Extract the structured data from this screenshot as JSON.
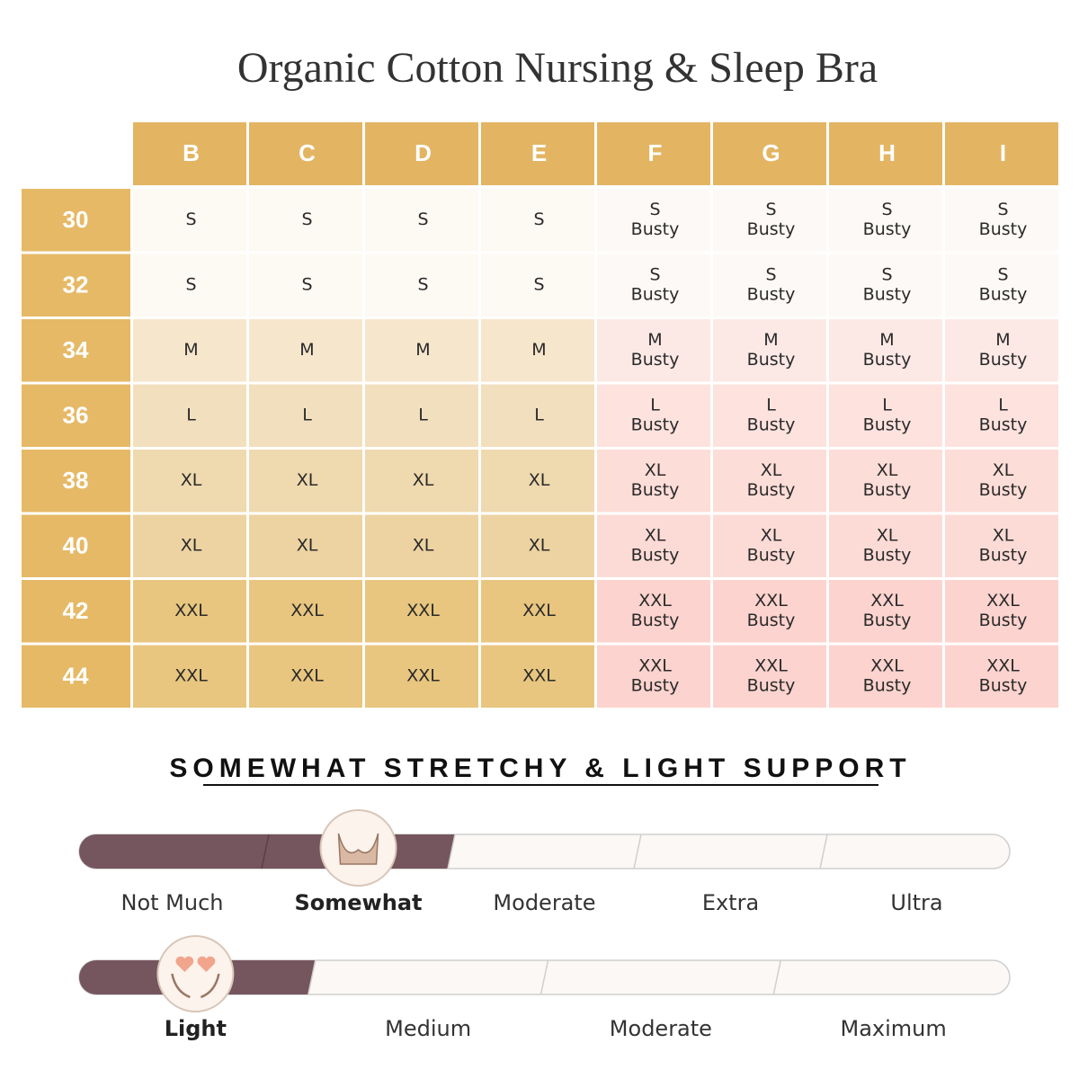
{
  "header": {
    "title": "Organic Cotton Nursing & Sleep Bra"
  },
  "table": {
    "columns": [
      "B",
      "C",
      "D",
      "E",
      "F",
      "G",
      "H",
      "I"
    ],
    "rows": [
      {
        "label": "30",
        "cells": [
          [
            "S"
          ],
          [
            "S"
          ],
          [
            "S"
          ],
          [
            "S"
          ],
          [
            "S",
            "Busty"
          ],
          [
            "S",
            "Busty"
          ],
          [
            "S",
            "Busty"
          ],
          [
            "S",
            "Busty"
          ]
        ]
      },
      {
        "label": "32",
        "cells": [
          [
            "S"
          ],
          [
            "S"
          ],
          [
            "S"
          ],
          [
            "S"
          ],
          [
            "S",
            "Busty"
          ],
          [
            "S",
            "Busty"
          ],
          [
            "S",
            "Busty"
          ],
          [
            "S",
            "Busty"
          ]
        ]
      },
      {
        "label": "34",
        "cells": [
          [
            "M"
          ],
          [
            "M"
          ],
          [
            "M"
          ],
          [
            "M"
          ],
          [
            "M",
            "Busty"
          ],
          [
            "M",
            "Busty"
          ],
          [
            "M",
            "Busty"
          ],
          [
            "M",
            "Busty"
          ]
        ]
      },
      {
        "label": "36",
        "cells": [
          [
            "L"
          ],
          [
            "L"
          ],
          [
            "L"
          ],
          [
            "L"
          ],
          [
            "L",
            "Busty"
          ],
          [
            "L",
            "Busty"
          ],
          [
            "L",
            "Busty"
          ],
          [
            "L",
            "Busty"
          ]
        ]
      },
      {
        "label": "38",
        "cells": [
          [
            "XL"
          ],
          [
            "XL"
          ],
          [
            "XL"
          ],
          [
            "XL"
          ],
          [
            "XL",
            "Busty"
          ],
          [
            "XL",
            "Busty"
          ],
          [
            "XL",
            "Busty"
          ],
          [
            "XL",
            "Busty"
          ]
        ]
      },
      {
        "label": "40",
        "cells": [
          [
            "XL"
          ],
          [
            "XL"
          ],
          [
            "XL"
          ],
          [
            "XL"
          ],
          [
            "XL",
            "Busty"
          ],
          [
            "XL",
            "Busty"
          ],
          [
            "XL",
            "Busty"
          ],
          [
            "XL",
            "Busty"
          ]
        ]
      },
      {
        "label": "42",
        "cells": [
          [
            "XXL"
          ],
          [
            "XXL"
          ],
          [
            "XXL"
          ],
          [
            "XXL"
          ],
          [
            "XXL",
            "Busty"
          ],
          [
            "XXL",
            "Busty"
          ],
          [
            "XXL",
            "Busty"
          ],
          [
            "XXL",
            "Busty"
          ]
        ]
      },
      {
        "label": "44",
        "cells": [
          [
            "XXL"
          ],
          [
            "XXL"
          ],
          [
            "XXL"
          ],
          [
            "XXL"
          ],
          [
            "XXL",
            "Busty"
          ],
          [
            "XXL",
            "Busty"
          ],
          [
            "XXL",
            "Busty"
          ],
          [
            "XXL",
            "Busty"
          ]
        ]
      }
    ]
  },
  "subtitle": "SOMEWHAT STRETCHY & LIGHT SUPPORT",
  "scales": [
    {
      "labels": [
        "Not Much",
        "Somewhat",
        "Moderate",
        "Extra",
        "Ultra"
      ],
      "selected": 1
    },
    {
      "labels": [
        "Light",
        "Medium",
        "Moderate",
        "Maximum"
      ],
      "selected": 0
    }
  ]
}
